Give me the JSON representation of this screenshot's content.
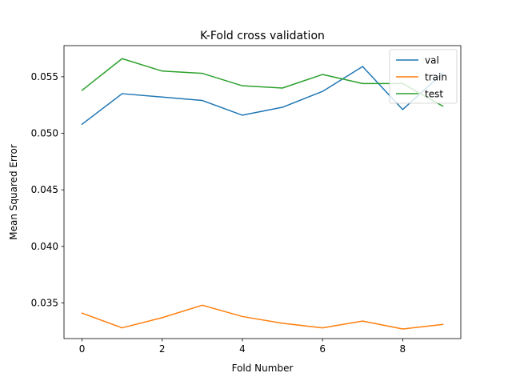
{
  "chart_data": {
    "type": "line",
    "title": "K-Fold cross validation",
    "xlabel": "Fold Number",
    "ylabel": "Mean Squared Error",
    "x": [
      0,
      1,
      2,
      3,
      4,
      5,
      6,
      7,
      8,
      9
    ],
    "xlim": [
      -0.45,
      9.45
    ],
    "ylim": [
      0.03185,
      0.05775
    ],
    "xticks": [
      0,
      2,
      4,
      6,
      8
    ],
    "yticks": [
      0.035,
      0.04,
      0.045,
      0.05,
      0.055
    ],
    "ytick_labels": [
      "0.035",
      "0.040",
      "0.045",
      "0.050",
      "0.055"
    ],
    "grid": false,
    "legend_position": "top-right",
    "series": [
      {
        "name": "val",
        "color": "#1f77b4",
        "values": [
          0.0508,
          0.0535,
          0.0532,
          0.0529,
          0.0516,
          0.0523,
          0.0537,
          0.0559,
          0.0521,
          0.0553
        ]
      },
      {
        "name": "train",
        "color": "#ff7f0e",
        "values": [
          0.0341,
          0.0328,
          0.0337,
          0.0348,
          0.0338,
          0.0332,
          0.0328,
          0.0334,
          0.0327,
          0.0331
        ]
      },
      {
        "name": "test",
        "color": "#2ca02c",
        "values": [
          0.0538,
          0.0566,
          0.0555,
          0.0553,
          0.0542,
          0.054,
          0.0552,
          0.0544,
          0.0544,
          0.0524
        ]
      }
    ]
  }
}
